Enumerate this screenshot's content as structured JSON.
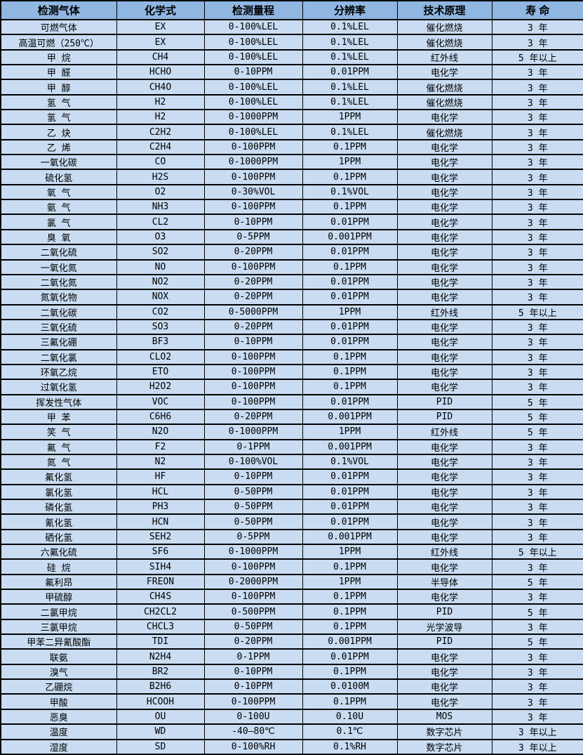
{
  "colors": {
    "header_bg": "#90B6E2",
    "row_bg": "#C9DCF2",
    "border": "#000000",
    "text": "#000000"
  },
  "table": {
    "headers": [
      "检测气体",
      "化学式",
      "检测量程",
      "分辨率",
      "技术原理",
      "寿 命"
    ],
    "column_names": [
      "gas-name",
      "formula",
      "range",
      "resolution",
      "principle",
      "lifespan"
    ],
    "rows": [
      [
        "可燃气体",
        "EX",
        "0-100%LEL",
        "0.1%LEL",
        "催化燃烧",
        "3 年"
      ],
      [
        "高温可燃（250℃）",
        "EX",
        "0-100%LEL",
        "0.1%LEL",
        "催化燃烧",
        "3 年"
      ],
      [
        "甲 烷",
        "CH4",
        "0-100%LEL",
        "0.1%LEL",
        "红外线",
        "5 年以上"
      ],
      [
        "甲 醛",
        "HCHO",
        "0-10PPM",
        "0.01PPM",
        "电化学",
        "3 年"
      ],
      [
        "甲 醇",
        "CH4O",
        "0-100%LEL",
        "0.1%LEL",
        "催化燃烧",
        "3 年"
      ],
      [
        "氢 气",
        "H2",
        "0-100%LEL",
        "0.1%LEL",
        "催化燃烧",
        "3 年"
      ],
      [
        "氢 气",
        "H2",
        "0-1000PPM",
        "1PPM",
        "电化学",
        "3 年"
      ],
      [
        "乙 炔",
        "C2H2",
        "0-100%LEL",
        "0.1%LEL",
        "催化燃烧",
        "3 年"
      ],
      [
        "乙 烯",
        "C2H4",
        "0-100PPM",
        "0.1PPM",
        "电化学",
        "3 年"
      ],
      [
        "一氧化碳",
        "CO",
        "0-1000PPM",
        "1PPM",
        "电化学",
        "3 年"
      ],
      [
        "硫化氢",
        "H2S",
        "0-100PPM",
        "0.1PPM",
        "电化学",
        "3 年"
      ],
      [
        "氧 气",
        "O2",
        "0-30%VOL",
        "0.1%VOL",
        "电化学",
        "3 年"
      ],
      [
        "氨 气",
        "NH3",
        "0-100PPM",
        "0.1PPM",
        "电化学",
        "3 年"
      ],
      [
        "氯 气",
        "CL2",
        "0-10PPM",
        "0.01PPM",
        "电化学",
        "3 年"
      ],
      [
        "臭 氧",
        "O3",
        "0-5PPM",
        "0.001PPM",
        "电化学",
        "3 年"
      ],
      [
        "二氧化硫",
        "SO2",
        "0-20PPM",
        "0.01PPM",
        "电化学",
        "3 年"
      ],
      [
        "一氧化氮",
        "NO",
        "0-100PPM",
        "0.1PPM",
        "电化学",
        "3 年"
      ],
      [
        "二氧化氮",
        "NO2",
        "0-20PPM",
        "0.01PPM",
        "电化学",
        "3 年"
      ],
      [
        "氮氧化物",
        "NOX",
        "0-20PPM",
        "0.01PPM",
        "电化学",
        "3 年"
      ],
      [
        "二氧化碳",
        "CO2",
        "0-5000PPM",
        "1PPM",
        "红外线",
        "5 年以上"
      ],
      [
        "三氧化硫",
        "SO3",
        "0-20PPM",
        "0.01PPM",
        "电化学",
        "3 年"
      ],
      [
        "三氟化硼",
        "BF3",
        "0-10PPM",
        "0.01PPM",
        "电化学",
        "3 年"
      ],
      [
        "二氧化氯",
        "CLO2",
        "0-100PPM",
        "0.1PPM",
        "电化学",
        "3 年"
      ],
      [
        "环氧乙烷",
        "ETO",
        "0-100PPM",
        "0.1PPM",
        "电化学",
        "3 年"
      ],
      [
        "过氧化氢",
        "H2O2",
        "0-100PPM",
        "0.1PPM",
        "电化学",
        "3 年"
      ],
      [
        "挥发性气体",
        "VOC",
        "0-100PPM",
        "0.01PPM",
        "PID",
        "5 年"
      ],
      [
        "甲 苯",
        "C6H6",
        "0-20PPM",
        "0.001PPM",
        "PID",
        "5 年"
      ],
      [
        "笑 气",
        "N2O",
        "0-1000PPM",
        "1PPM",
        "红外线",
        "5 年"
      ],
      [
        "氟 气",
        "F2",
        "0-1PPM",
        "0.001PPM",
        "电化学",
        "3 年"
      ],
      [
        "氮 气",
        "N2",
        "0-100%VOL",
        "0.1%VOL",
        "电化学",
        "3 年"
      ],
      [
        "氟化氢",
        "HF",
        "0-10PPM",
        "0.01PPM",
        "电化学",
        "3 年"
      ],
      [
        "氯化氢",
        "HCL",
        "0-50PPM",
        "0.01PPM",
        "电化学",
        "3 年"
      ],
      [
        "磷化氢",
        "PH3",
        "0-50PPM",
        "0.01PPM",
        "电化学",
        "3 年"
      ],
      [
        "氰化氢",
        "HCN",
        "0-50PPM",
        "0.01PPM",
        "电化学",
        "3 年"
      ],
      [
        "硒化氢",
        "SEH2",
        "0-5PPM",
        "0.001PPM",
        "电化学",
        "3 年"
      ],
      [
        "六氟化硫",
        "SF6",
        "0-1000PPM",
        "1PPM",
        "红外线",
        "5 年以上"
      ],
      [
        "硅 烷",
        "SIH4",
        "0-100PPM",
        "0.1PPM",
        "电化学",
        "3 年"
      ],
      [
        "氟利昂",
        "FREON",
        "0-2000PPM",
        "1PPM",
        "半导体",
        "5 年"
      ],
      [
        "甲硫醇",
        "CH4S",
        "0-100PPM",
        "0.1PPM",
        "电化学",
        "3 年"
      ],
      [
        "二氯甲烷",
        "CH2CL2",
        "0-500PPM",
        "0.1PPM",
        "PID",
        "5 年"
      ],
      [
        "三氯甲烷",
        "CHCL3",
        "0-50PPM",
        "0.1PPM",
        "光学波导",
        "3 年"
      ],
      [
        "甲苯二异氰酸酯",
        "TDI",
        "0-20PPM",
        "0.001PPM",
        "PID",
        "5 年"
      ],
      [
        "联氨",
        "N2H4",
        "0-1PPM",
        "0.01PPM",
        "电化学",
        "3 年"
      ],
      [
        "溴气",
        "BR2",
        "0-10PPM",
        "0.1PPM",
        "电化学",
        "3 年"
      ],
      [
        "乙硼烷",
        "B2H6",
        "0-10PPM",
        "0.0100M",
        "电化学",
        "3 年"
      ],
      [
        "甲酸",
        "HCOOH",
        "0-100PPM",
        "0.1PPM",
        "电化学",
        "3 年"
      ],
      [
        "恶臭",
        "OU",
        "0-100U",
        "0.10U",
        "MOS",
        "3 年"
      ],
      [
        "温度",
        "WD",
        "-40—80℃",
        "0.1℃",
        "数字芯片",
        "3 年以上"
      ],
      [
        "湿度",
        "SD",
        "0-100%RH",
        "0.1%RH",
        "数字芯片",
        "3 年以上"
      ]
    ]
  }
}
